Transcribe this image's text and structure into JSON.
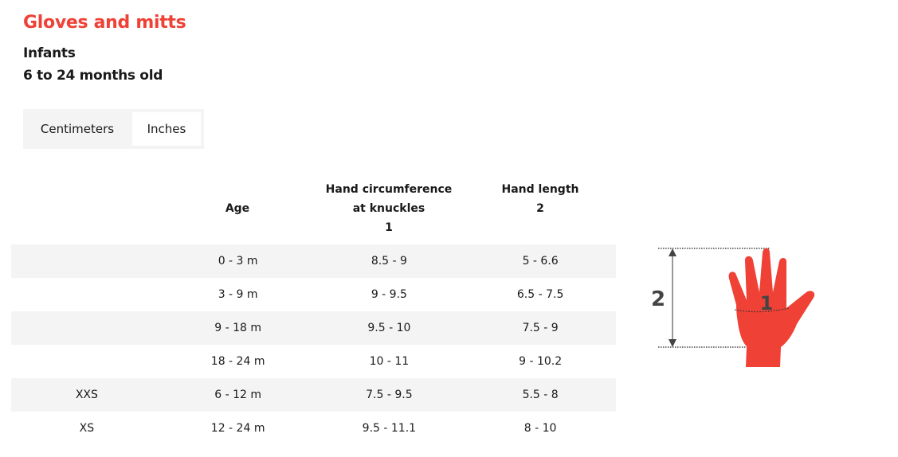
{
  "title": "Gloves and mitts",
  "subtitle1": "Infants",
  "subtitle2": "6 to 24 months old",
  "unit_toggle": {
    "options": [
      "Centimeters",
      "Inches"
    ],
    "selected": "Inches"
  },
  "table": {
    "headers": [
      "",
      "Age",
      "Hand circumference at knuckles\n1",
      "Hand length\n2"
    ],
    "header_lines": {
      "age": "Age",
      "circ1": "Hand circumference",
      "circ2": "at knuckles",
      "circ3": "1",
      "len1": "Hand length",
      "len2": "2"
    },
    "rows": [
      [
        "",
        "0 - 3 m",
        "8.5 - 9",
        "5 - 6.6"
      ],
      [
        "",
        "3 - 9 m",
        "9 - 9.5",
        "6.5 - 7.5"
      ],
      [
        "",
        "9 - 18 m",
        "9.5 - 10",
        "7.5 - 9"
      ],
      [
        "",
        "18 - 24 m",
        "10 - 11",
        "9 - 10.2"
      ],
      [
        "XXS",
        "6 - 12 m",
        "7.5 - 9.5",
        "5.5 - 8"
      ],
      [
        "XS",
        "12 - 24 m",
        "9.5 - 11.1",
        "8 - 10"
      ]
    ]
  },
  "diagram": {
    "label_circumference": "1",
    "label_length": "2",
    "hand_color": "#ef4136"
  },
  "colors": {
    "accent": "#ef4136",
    "row_stripe": "#f4f4f4"
  }
}
